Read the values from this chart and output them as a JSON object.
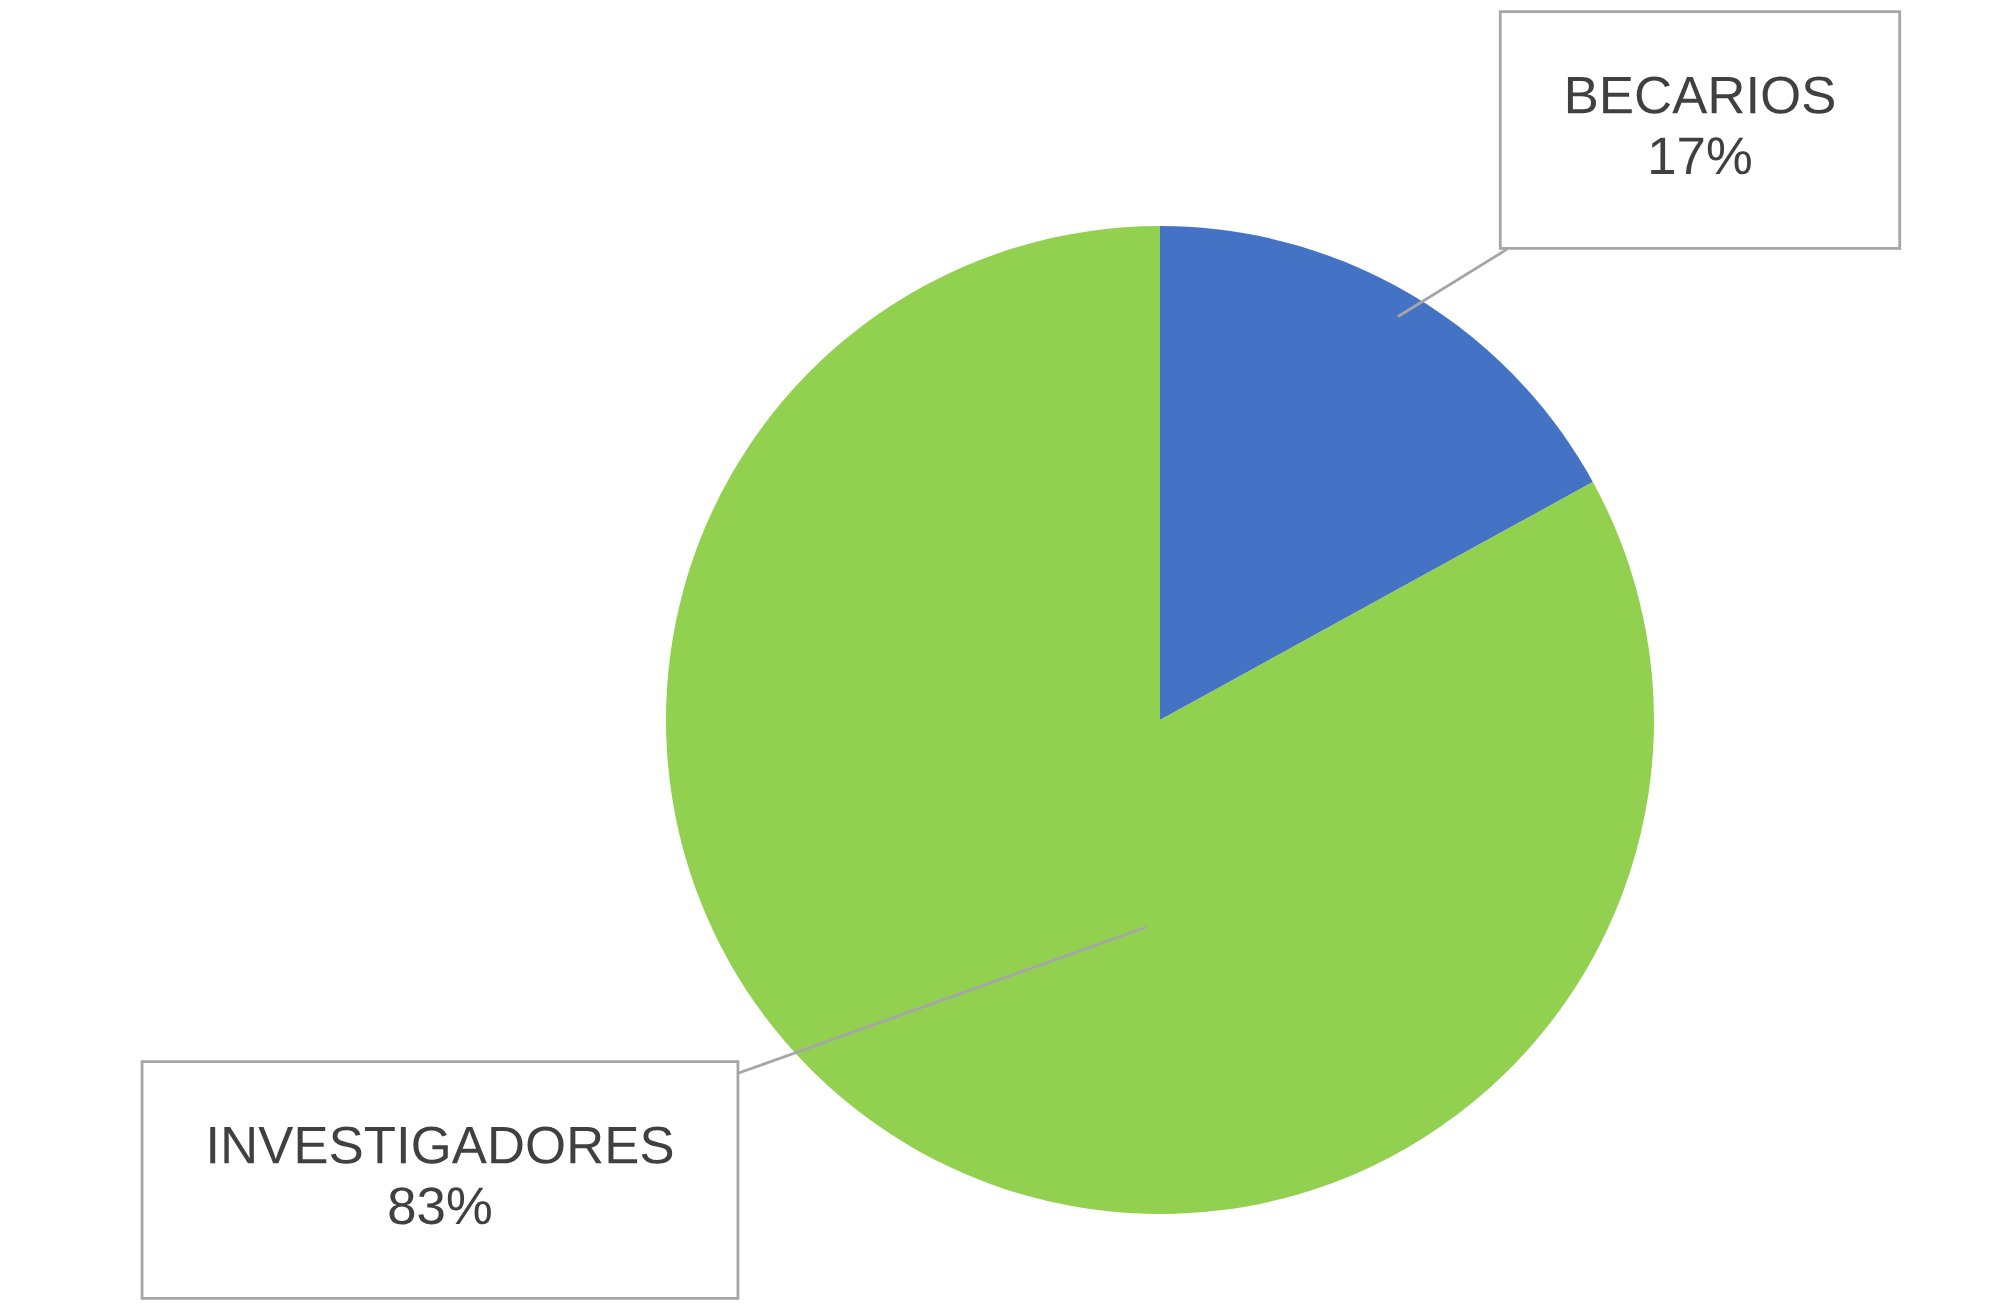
{
  "chart_data": {
    "type": "pie",
    "categories": [
      "BECARIOS",
      "INVESTIGADORES"
    ],
    "values": [
      17,
      83
    ],
    "colors": [
      "#4472c4",
      "#92d050"
    ],
    "value_labels": [
      "17%",
      "83%"
    ],
    "legend": false
  }
}
